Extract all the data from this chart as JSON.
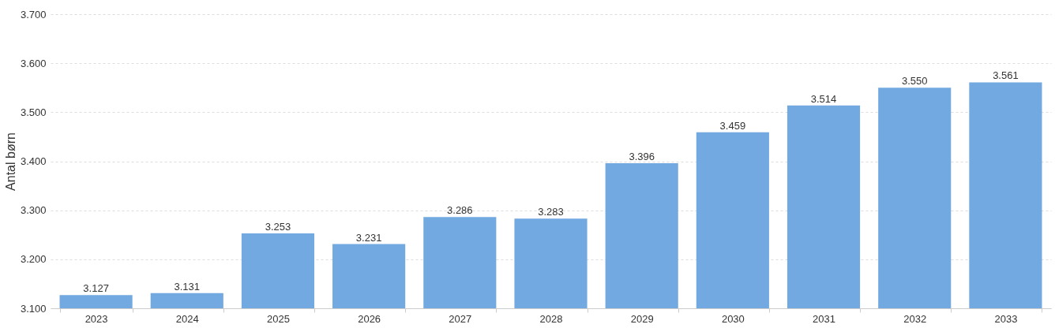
{
  "chart_data": {
    "type": "bar",
    "ylabel": "Antal børn",
    "categories": [
      "2023",
      "2024",
      "2025",
      "2026",
      "2027",
      "2028",
      "2029",
      "2030",
      "2031",
      "2032",
      "2033"
    ],
    "values": [
      3127,
      3131,
      3253,
      3231,
      3286,
      3283,
      3396,
      3459,
      3514,
      3550,
      3561
    ],
    "value_labels": [
      "3.127",
      "3.131",
      "3.253",
      "3.231",
      "3.286",
      "3.283",
      "3.396",
      "3.459",
      "3.514",
      "3.550",
      "3.561"
    ],
    "color": "#72a9e0",
    "ylim": [
      3100,
      3700
    ],
    "yticks": [
      {
        "value": 3100,
        "label": "3.100"
      },
      {
        "value": 3200,
        "label": "3.200"
      },
      {
        "value": 3300,
        "label": "3.300"
      },
      {
        "value": 3400,
        "label": "3.400"
      },
      {
        "value": 3500,
        "label": "3.500"
      },
      {
        "value": 3600,
        "label": "3.600"
      },
      {
        "value": 3700,
        "label": "3.700"
      }
    ],
    "grid": "y"
  }
}
